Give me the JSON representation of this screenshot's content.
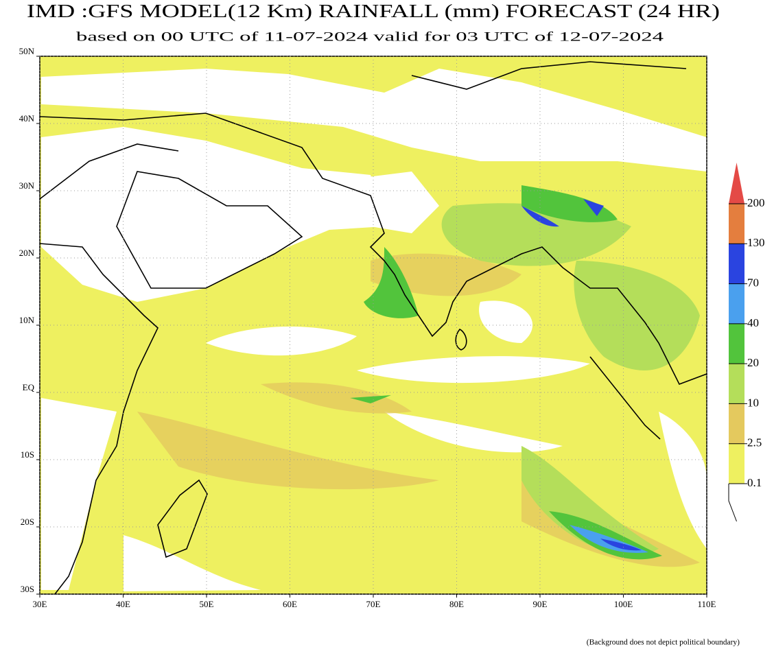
{
  "header": {
    "title": "IMD :GFS MODEL(12 Km) RAINFALL (mm) FORECAST (24 HR)",
    "subtitle": "based on 00 UTC of 11-07-2024 valid for 03 UTC of 12-07-2024"
  },
  "map": {
    "lonlim": [
      30,
      110
    ],
    "latlim": [
      -30,
      50
    ],
    "lonticks": [
      {
        "value": 30,
        "label": "30E"
      },
      {
        "value": 40,
        "label": "40E"
      },
      {
        "value": 50,
        "label": "50E"
      },
      {
        "value": 60,
        "label": "60E"
      },
      {
        "value": 70,
        "label": "70E"
      },
      {
        "value": 80,
        "label": "80E"
      },
      {
        "value": 90,
        "label": "90E"
      },
      {
        "value": 100,
        "label": "100E"
      },
      {
        "value": 110,
        "label": "110E"
      }
    ],
    "latticks": [
      {
        "value": 50,
        "label": "50N"
      },
      {
        "value": 40,
        "label": "40N"
      },
      {
        "value": 30,
        "label": "30N"
      },
      {
        "value": 20,
        "label": "20N"
      },
      {
        "value": 10,
        "label": "10N"
      },
      {
        "value": 0,
        "label": "EQ"
      },
      {
        "value": -10,
        "label": "10S"
      },
      {
        "value": -20,
        "label": "20S"
      },
      {
        "value": -30,
        "label": "30S"
      }
    ],
    "grid": true
  },
  "legend": {
    "levels": [
      0.1,
      2.5,
      10,
      20,
      40,
      70,
      130,
      200
    ],
    "colors": [
      "#eef060",
      "#e4c95e",
      "#b4de5a",
      "#52c43c",
      "#4aa0ee",
      "#2a44e0",
      "#e47e3e",
      "#e44a46"
    ]
  },
  "footnote": "(Background does not depict political boundary)"
}
